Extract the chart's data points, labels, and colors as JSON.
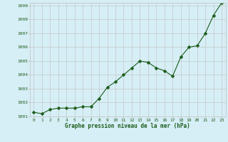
{
  "x": [
    0,
    1,
    2,
    3,
    4,
    5,
    6,
    7,
    8,
    9,
    10,
    11,
    12,
    13,
    14,
    15,
    16,
    17,
    18,
    19,
    20,
    21,
    22,
    23
  ],
  "y": [
    1001.3,
    1001.2,
    1001.5,
    1001.6,
    1001.6,
    1001.6,
    1001.7,
    1001.7,
    1002.3,
    1003.1,
    1003.5,
    1004.0,
    1004.5,
    1005.0,
    1004.9,
    1004.5,
    1004.3,
    1003.9,
    1005.3,
    1006.0,
    1006.1,
    1007.0,
    1008.3,
    1009.2
  ],
  "line_color": "#1a5c1a",
  "marker_color": "#1a5c1a",
  "bg_color": "#d6eef5",
  "grid_color": "#c0c0c0",
  "xlabel": "Graphe pression niveau de la mer (hPa)",
  "xlabel_color": "#1a5c1a",
  "tick_color": "#1a5c1a",
  "ylim": [
    1001,
    1009
  ],
  "xlim_min": -0.5,
  "xlim_max": 23.5,
  "yticks": [
    1001,
    1002,
    1003,
    1004,
    1005,
    1006,
    1007,
    1008,
    1009
  ],
  "xticks": [
    0,
    1,
    2,
    3,
    4,
    5,
    6,
    7,
    8,
    9,
    10,
    11,
    12,
    13,
    14,
    15,
    16,
    17,
    18,
    19,
    20,
    21,
    22,
    23
  ],
  "tick_fontsize": 4.5,
  "xlabel_fontsize": 5.5,
  "xlabel_fontweight": "bold"
}
